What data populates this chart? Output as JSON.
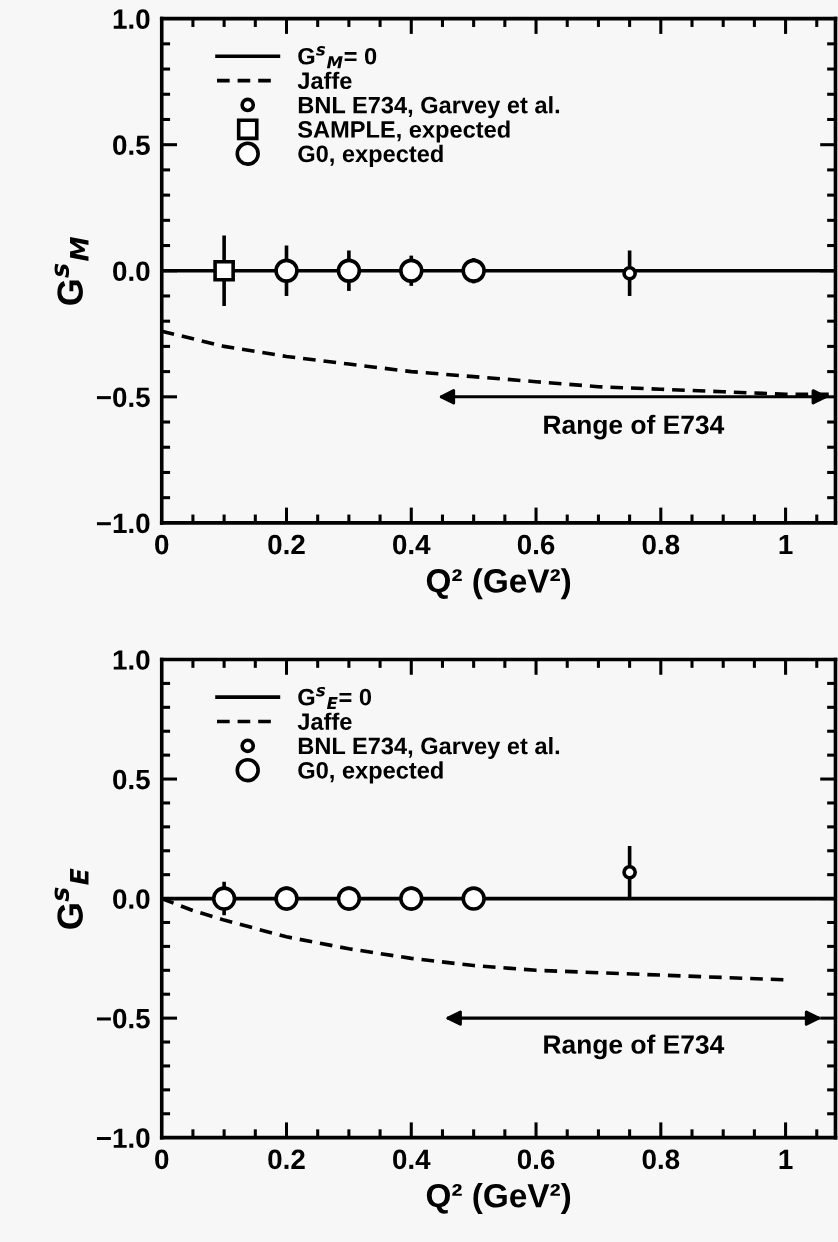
{
  "chart_data": [
    {
      "type": "scatter",
      "xlabel": "Q² (GeV²)",
      "ylabel": "G$^{s}$$_{M}$",
      "xlim": [
        0,
        1.08
      ],
      "ylim": [
        -1.0,
        1.0
      ],
      "xticks": [
        0,
        {
          "value": 0.2,
          "label": "0.2"
        },
        {
          "value": 0.4,
          "label": "0.4"
        },
        {
          "value": 0.6,
          "label": "0.6"
        },
        {
          "value": 0.8,
          "label": "0.8"
        },
        1
      ],
      "yticks": [
        {
          "value": -1.0,
          "label": "−1.0"
        },
        {
          "value": -0.5,
          "label": "−0.5"
        },
        {
          "value": 0.0,
          "label": "0.0"
        },
        {
          "value": 0.5,
          "label": "0.5"
        },
        {
          "value": 1.0,
          "label": "1.0"
        }
      ],
      "legend": "top left",
      "grid": false,
      "annotations": [
        "Range of E734"
      ],
      "series": [
        {
          "name": "G$^{s}$$_{M}$= 0",
          "type": "line",
          "color": "#000000",
          "line_style": "solid",
          "marker": "none",
          "x": [
            0,
            1.08
          ],
          "values": [
            0,
            0
          ]
        },
        {
          "name": "Jaffe",
          "type": "line",
          "color": "#000000",
          "line_style": "dashed",
          "marker": "none",
          "x": [
            0,
            0.1,
            0.2,
            0.3,
            0.4,
            0.5,
            0.6,
            0.7,
            0.8,
            0.9,
            1.0,
            1.08
          ],
          "values": [
            -0.24,
            -0.3,
            -0.34,
            -0.37,
            -0.4,
            -0.42,
            -0.44,
            -0.46,
            -0.47,
            -0.48,
            -0.49,
            -0.49
          ]
        },
        {
          "name": "BNL E734, Garvey et al.",
          "color": "#000000",
          "marker": "circle",
          "x": [
            0.75
          ],
          "values": [
            -0.01
          ],
          "errors": [
            0.09
          ]
        },
        {
          "name": "SAMPLE, expected",
          "color": "#000000",
          "marker": "square",
          "x": [
            0.1
          ],
          "values": [
            0.0
          ],
          "errors": [
            0.14
          ]
        },
        {
          "name": "G0, expected",
          "color": "#000000",
          "marker": "circle",
          "x": [
            0.2,
            0.3,
            0.4,
            0.5
          ],
          "values": [
            0.0,
            0.0,
            0.0,
            0.0
          ],
          "errors": [
            0.1,
            0.08,
            0.06,
            0.05
          ]
        }
      ]
    },
    {
      "type": "scatter",
      "xlabel": "Q² (GeV²)",
      "ylabel": "G$^{s}$$_{E}$",
      "xlim": [
        0,
        1.08
      ],
      "ylim": [
        -1.0,
        1.0
      ],
      "xticks": [
        0,
        {
          "value": 0.2,
          "label": "0.2"
        },
        {
          "value": 0.4,
          "label": "0.4"
        },
        {
          "value": 0.6,
          "label": "0.6"
        },
        {
          "value": 0.8,
          "label": "0.8"
        },
        1
      ],
      "yticks": [
        {
          "value": -1.0,
          "label": "−1.0"
        },
        {
          "value": -0.5,
          "label": "−0.5"
        },
        {
          "value": 0.0,
          "label": "0.0"
        },
        {
          "value": 0.5,
          "label": "0.5"
        },
        {
          "value": 1.0,
          "label": "1.0"
        }
      ],
      "legend": "top left",
      "grid": false,
      "annotations": [
        "Range of E734"
      ],
      "series": [
        {
          "name": "G$^{s}$$_{E}$= 0",
          "type": "line",
          "color": "#000000",
          "line_style": "solid",
          "marker": "none",
          "x": [
            0,
            1.08
          ],
          "values": [
            0,
            0
          ]
        },
        {
          "name": "Jaffe",
          "type": "line",
          "color": "#000000",
          "line_style": "dashed",
          "marker": "none",
          "x": [
            0,
            0.05,
            0.1,
            0.2,
            0.3,
            0.4,
            0.5,
            0.6,
            0.8,
            1.0
          ],
          "values": [
            0,
            -0.05,
            -0.09,
            -0.16,
            -0.21,
            -0.25,
            -0.28,
            -0.3,
            -0.32,
            -0.34
          ]
        },
        {
          "name": "BNL E734, Garvey et al.",
          "color": "#000000",
          "marker": "circle",
          "x": [
            0.75
          ],
          "values": [
            0.11
          ],
          "errors": [
            0.11
          ]
        },
        {
          "name": "G0, expected",
          "color": "#000000",
          "marker": "circle",
          "x": [
            0.1,
            0.2,
            0.3,
            0.4,
            0.5
          ],
          "values": [
            0.0,
            0.0,
            0.0,
            0.0,
            0.0
          ],
          "errors": [
            0.07,
            0.05,
            0.05,
            0.05,
            0.04
          ]
        }
      ]
    }
  ]
}
